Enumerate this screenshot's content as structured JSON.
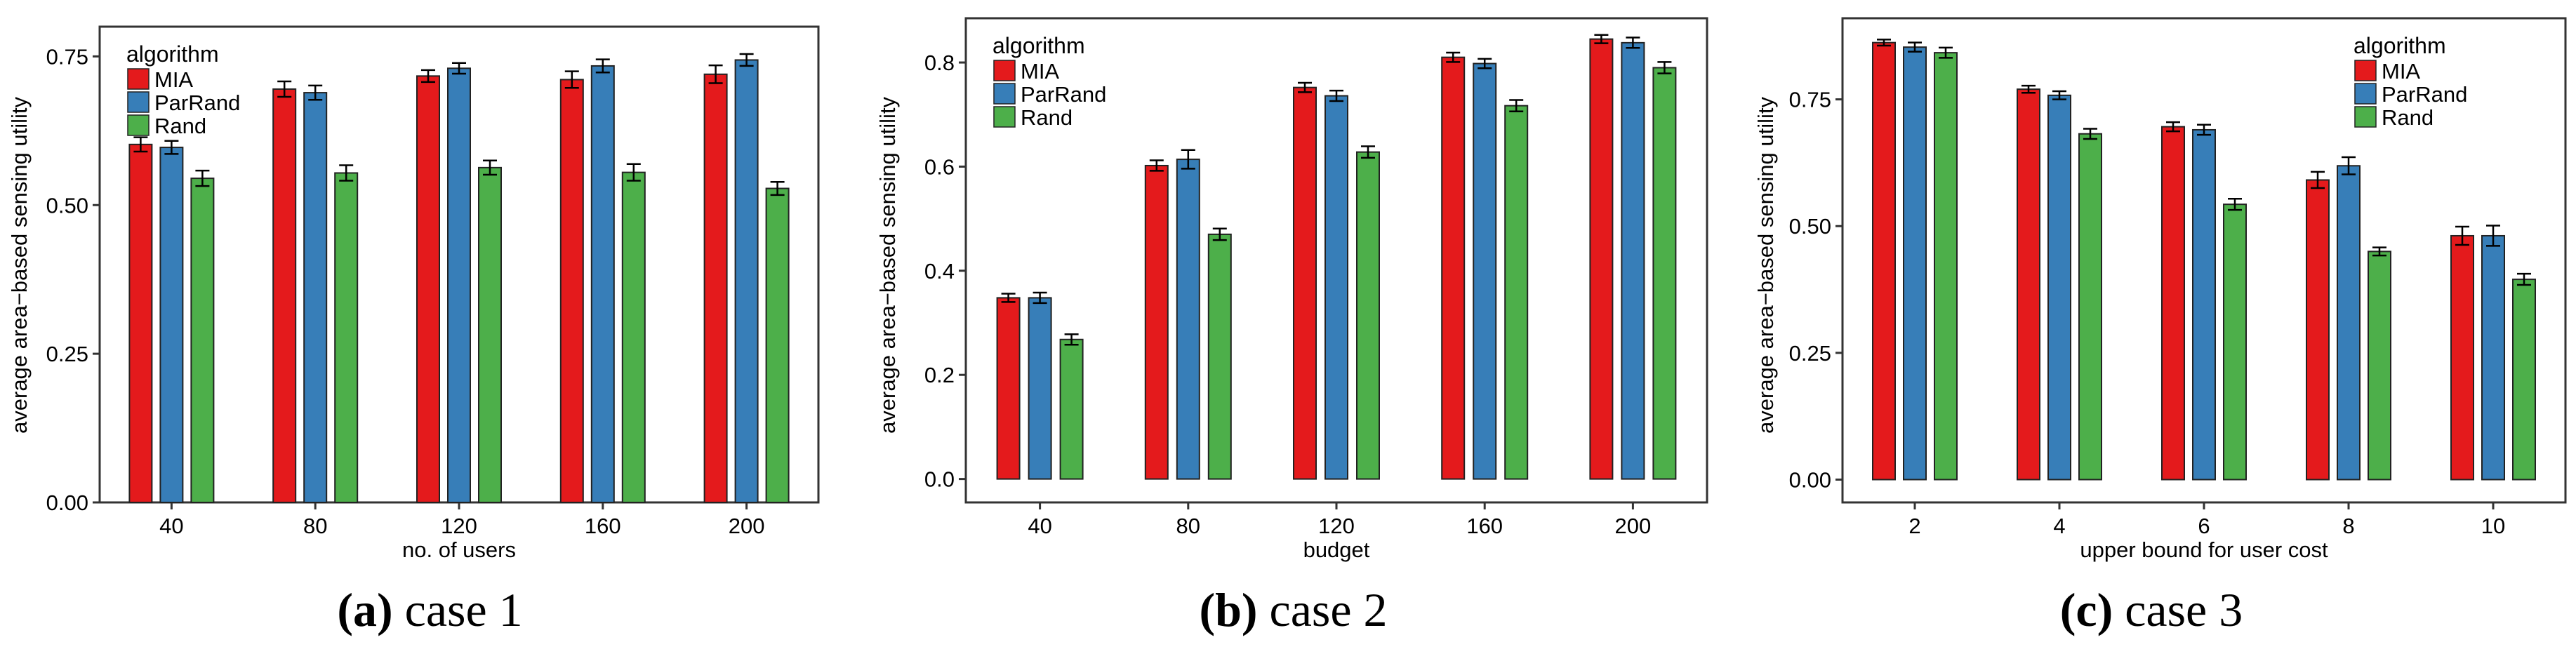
{
  "figure": {
    "legend_title": "algorithm",
    "series_names": [
      "MIA",
      "ParRand",
      "Rand"
    ],
    "colors": {
      "MIA": "#e41a1c",
      "ParRand": "#377eb8",
      "Rand": "#4daf4a",
      "frame": "#333333",
      "text": "#000000"
    }
  },
  "chart_data": [
    {
      "type": "bar",
      "caption_letter": "(a)",
      "caption_text": "case 1",
      "xlabel": "no. of users",
      "ylabel": "average area−based sensing utility",
      "categories": [
        "40",
        "80",
        "120",
        "160",
        "200"
      ],
      "ylim": [
        0,
        0.8
      ],
      "yticks": [
        0.0,
        0.25,
        0.5,
        0.75
      ],
      "ytick_labels": [
        "0.00",
        "0.25",
        "0.50",
        "0.75"
      ],
      "legend_position": "top-left",
      "series": [
        {
          "name": "MIA",
          "values": [
            0.602,
            0.695,
            0.717,
            0.711,
            0.72
          ],
          "errors": [
            0.012,
            0.013,
            0.01,
            0.014,
            0.015
          ]
        },
        {
          "name": "ParRand",
          "values": [
            0.597,
            0.689,
            0.73,
            0.734,
            0.744
          ],
          "errors": [
            0.011,
            0.012,
            0.009,
            0.011,
            0.01
          ]
        },
        {
          "name": "Rand",
          "values": [
            0.545,
            0.554,
            0.563,
            0.555,
            0.528
          ],
          "errors": [
            0.013,
            0.013,
            0.012,
            0.014,
            0.011
          ]
        }
      ]
    },
    {
      "type": "bar",
      "caption_letter": "(b)",
      "caption_text": "case 2",
      "xlabel": "budget",
      "ylabel": "average area−based sensing utility",
      "categories": [
        "40",
        "80",
        "120",
        "160",
        "200"
      ],
      "ylim": [
        -0.045,
        0.885
      ],
      "yticks": [
        0.0,
        0.2,
        0.4,
        0.6,
        0.8
      ],
      "ytick_labels": [
        "0.0",
        "0.2",
        "0.4",
        "0.6",
        "0.8"
      ],
      "legend_position": "top-left",
      "series": [
        {
          "name": "MIA",
          "values": [
            0.348,
            0.602,
            0.752,
            0.81,
            0.845
          ],
          "errors": [
            0.008,
            0.01,
            0.009,
            0.009,
            0.008
          ]
        },
        {
          "name": "ParRand",
          "values": [
            0.348,
            0.614,
            0.736,
            0.798,
            0.838
          ],
          "errors": [
            0.01,
            0.018,
            0.01,
            0.009,
            0.01
          ]
        },
        {
          "name": "Rand",
          "values": [
            0.268,
            0.47,
            0.628,
            0.717,
            0.79
          ],
          "errors": [
            0.01,
            0.011,
            0.011,
            0.011,
            0.011
          ]
        }
      ]
    },
    {
      "type": "bar",
      "caption_letter": "(c)",
      "caption_text": "case 3",
      "xlabel": "upper bound for user cost",
      "ylabel": "average area−based sensing utility",
      "categories": [
        "2",
        "4",
        "6",
        "8",
        "10"
      ],
      "ylim": [
        -0.045,
        0.91
      ],
      "yticks": [
        0.0,
        0.25,
        0.5,
        0.75
      ],
      "ytick_labels": [
        "0.00",
        "0.25",
        "0.50",
        "0.75"
      ],
      "legend_position": "top-right",
      "series": [
        {
          "name": "MIA",
          "values": [
            0.862,
            0.77,
            0.696,
            0.591,
            0.481
          ],
          "errors": [
            0.006,
            0.007,
            0.009,
            0.016,
            0.018
          ]
        },
        {
          "name": "ParRand",
          "values": [
            0.853,
            0.758,
            0.69,
            0.619,
            0.481
          ],
          "errors": [
            0.009,
            0.008,
            0.01,
            0.017,
            0.02
          ]
        },
        {
          "name": "Rand",
          "values": [
            0.842,
            0.682,
            0.543,
            0.45,
            0.395
          ],
          "errors": [
            0.01,
            0.01,
            0.011,
            0.008,
            0.011
          ]
        }
      ]
    }
  ]
}
